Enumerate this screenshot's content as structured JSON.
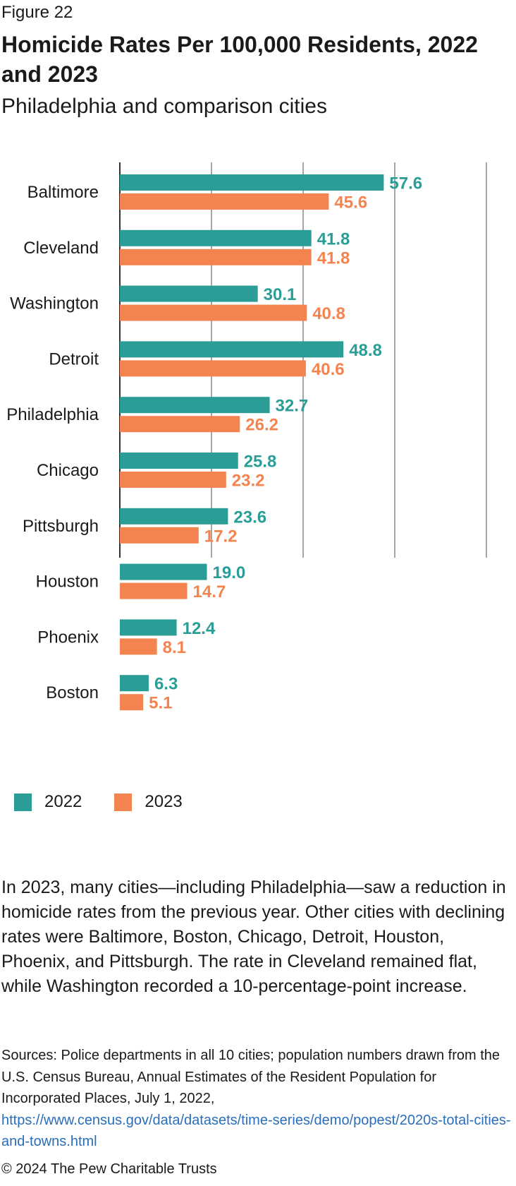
{
  "figure_label": "Figure 22",
  "title": "Homicide Rates Per 100,000 Residents, 2022 and 2023",
  "subtitle": "Philadelphia and comparison cities",
  "chart_data": {
    "type": "bar",
    "orientation": "horizontal",
    "categories": [
      "Baltimore",
      "Cleveland",
      "Washington",
      "Detroit",
      "Philadelphia",
      "Chicago",
      "Pittsburgh",
      "Houston",
      "Phoenix",
      "Boston"
    ],
    "series": [
      {
        "name": "2022",
        "color": "#2a9d97",
        "values": [
          57.6,
          41.8,
          30.1,
          48.8,
          32.7,
          25.8,
          23.6,
          19.0,
          12.4,
          6.3
        ],
        "labels": [
          "57.6",
          "41.8",
          "30.1",
          "48.8",
          "32.7",
          "25.8",
          "23.6",
          "19.0",
          "12.4",
          "6.3"
        ]
      },
      {
        "name": "2023",
        "color": "#f4844f",
        "values": [
          45.6,
          41.8,
          40.8,
          40.6,
          26.2,
          23.2,
          17.2,
          14.7,
          8.1,
          5.1
        ],
        "labels": [
          "45.6",
          "41.8",
          "40.8",
          "40.6",
          "26.2",
          "23.2",
          "17.2",
          "14.7",
          "8.1",
          "5.1"
        ]
      }
    ],
    "xlim": [
      0,
      80
    ],
    "xticks": [
      "0",
      "20",
      "40",
      "60",
      "80"
    ],
    "grid": true,
    "legend_position": "bottom-left"
  },
  "body_text": "In 2023, many cities—including Philadelphia—saw a reduction in homicide rates from the previous year. Other cities with declining rates were Baltimore, Boston, Chicago, Detroit, Houston, Phoenix, and Pittsburgh. The rate in Cleveland remained flat, while Washington recorded a 10-percentage-point increase.",
  "sources": {
    "text": "Sources: Police departments in all 10 cities; population numbers drawn from the U.S. Census Bureau, Annual Estimates of the Resident Population for Incorporated Places, July 1, 2022,",
    "link": "https://www.census.gov/data/datasets/time-series/demo/popest/2020s-total-cities-and-towns.html"
  },
  "copyright": "© 2024 The Pew Charitable Trusts"
}
